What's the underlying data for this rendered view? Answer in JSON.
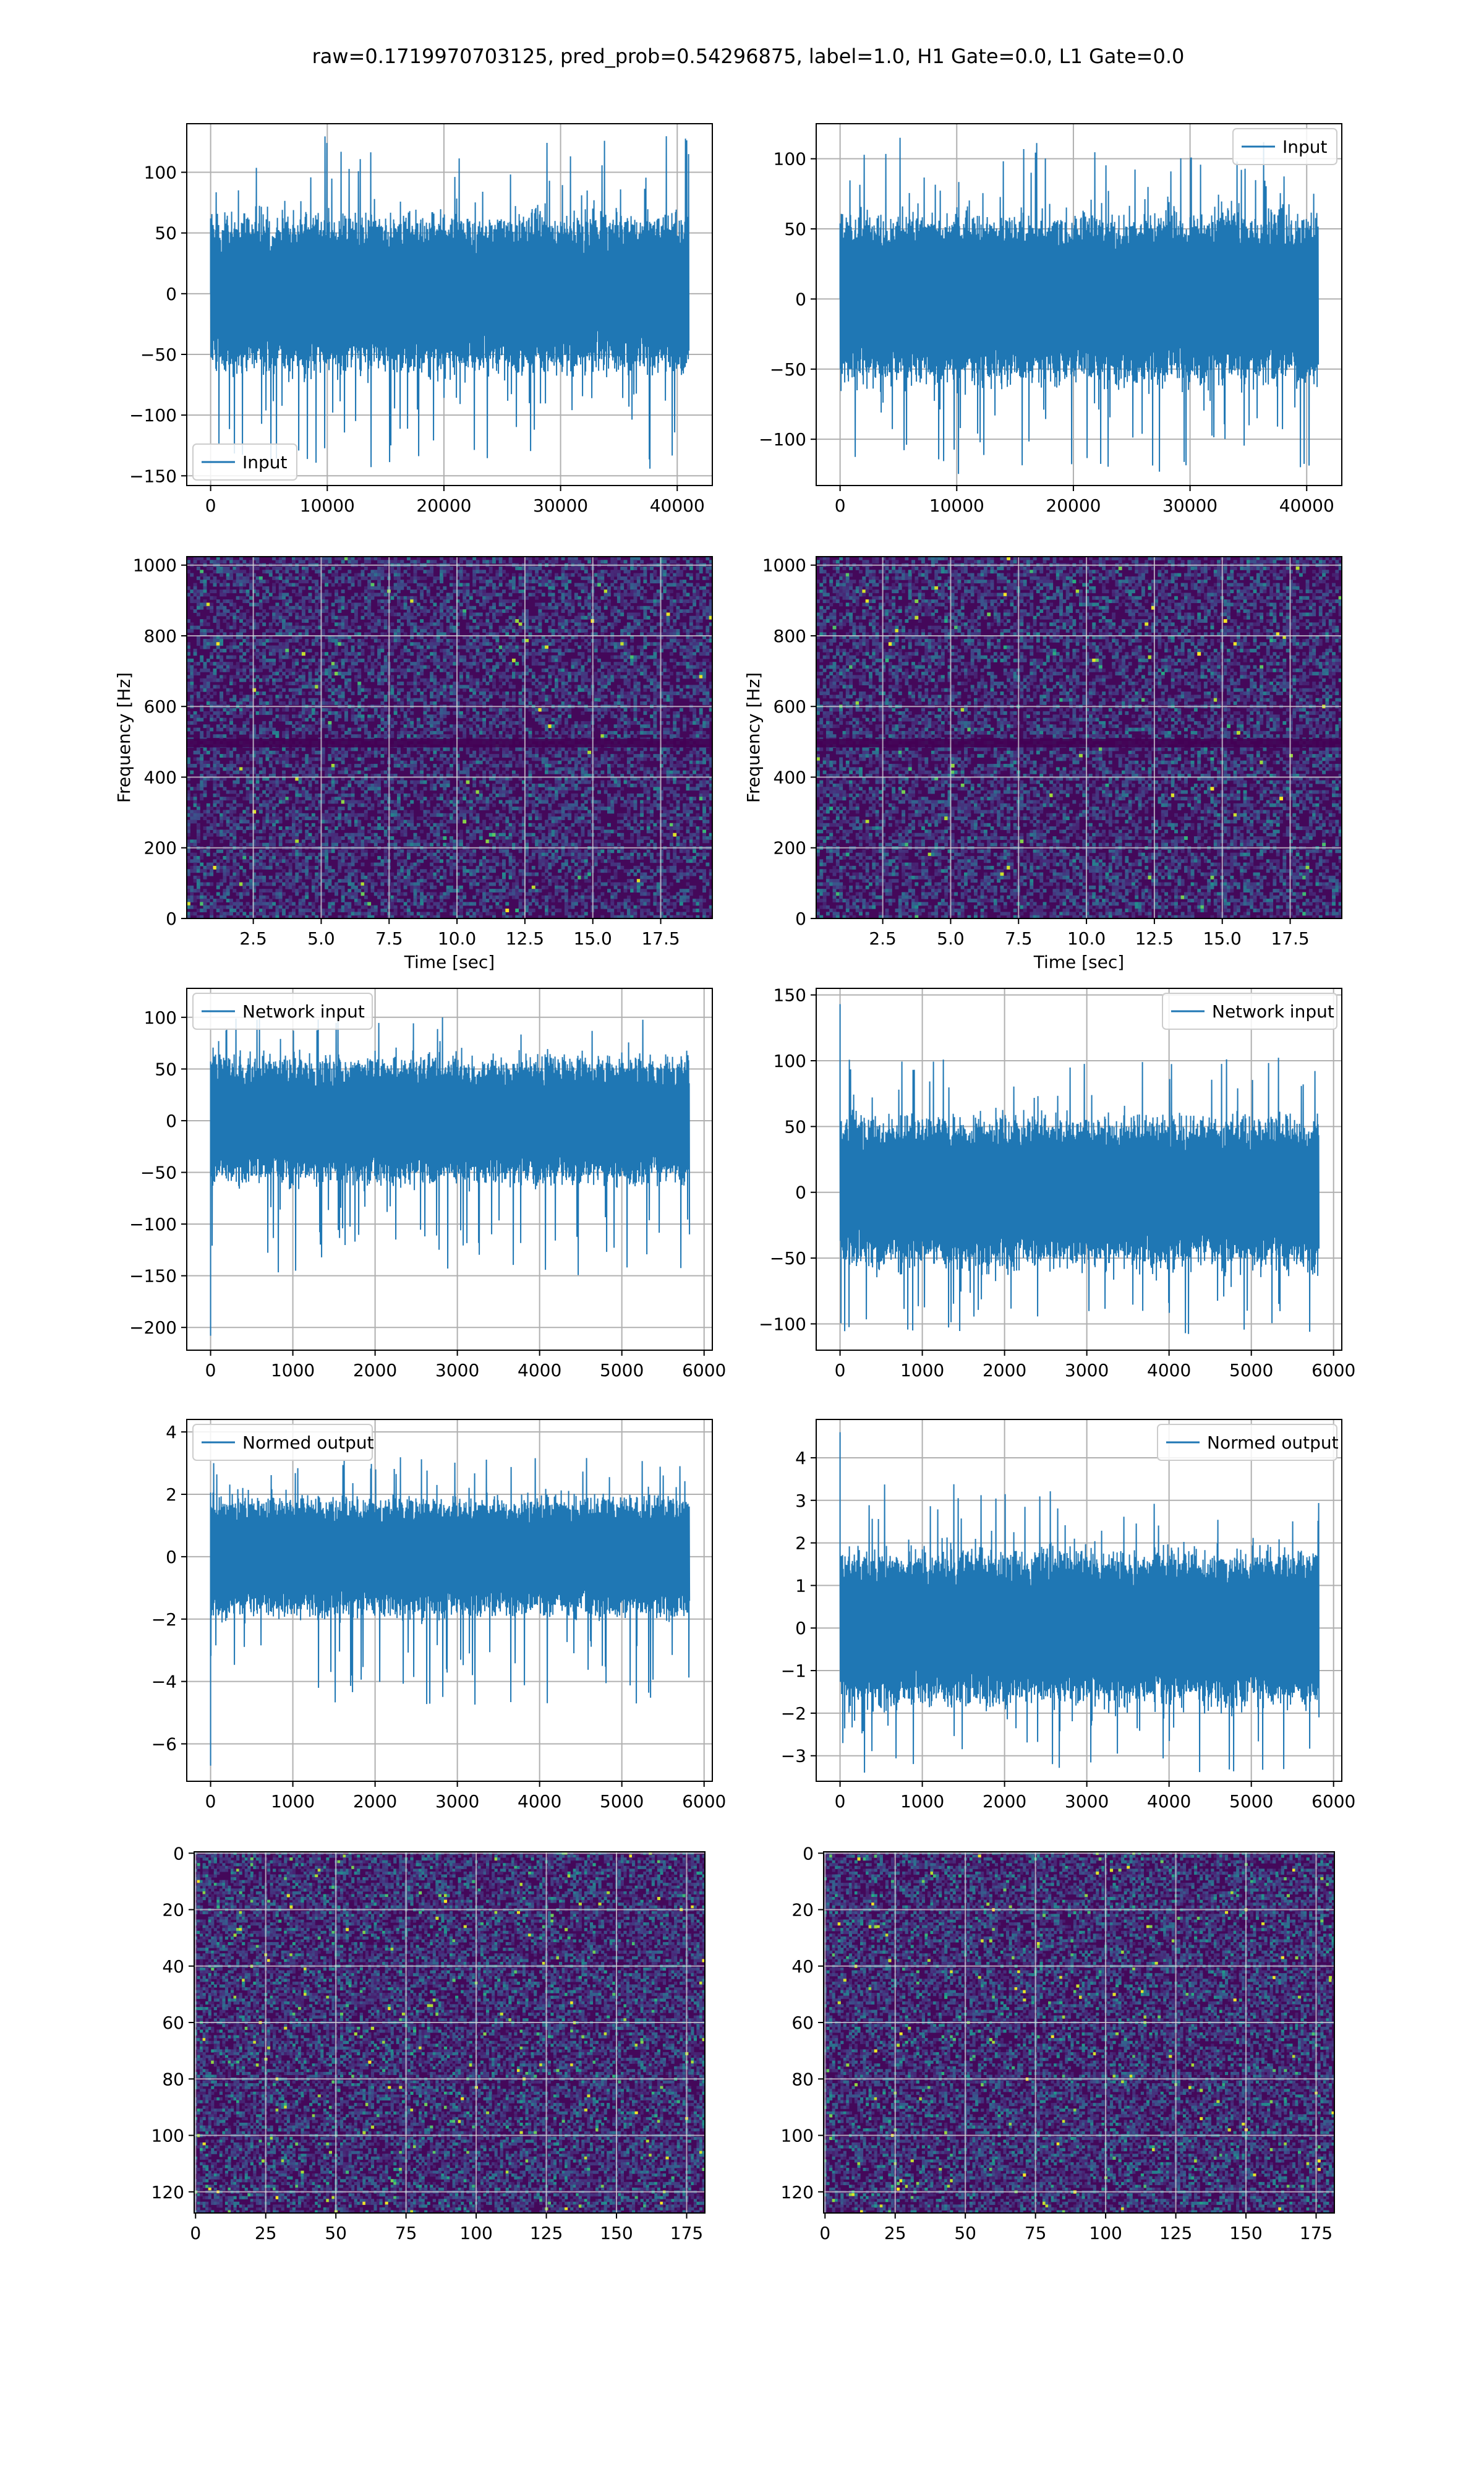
{
  "figure": {
    "title": "raw=0.1719970703125, pred_prob=0.54296875, label=1.0, H1 Gate=0.0, L1 Gate=0.0",
    "accent_color": "#1f77b4",
    "colormap": "viridis"
  },
  "chart_data": [
    {
      "id": "p1",
      "type": "line",
      "series": [
        {
          "name": "Input"
        }
      ],
      "xlim": [
        -2048,
        43008
      ],
      "ylim": [
        -158,
        140
      ],
      "xticks": [
        0,
        10000,
        20000,
        30000,
        40000
      ],
      "yticks": [
        -150,
        -100,
        -50,
        0,
        50,
        100
      ],
      "xticklabels": [
        "0",
        "10000",
        "20000",
        "30000",
        "40000"
      ],
      "yticklabels": [
        "−150",
        "−100",
        "−50",
        "0",
        "50",
        "100"
      ],
      "grid": true,
      "legend": "lower-left",
      "signal": {
        "x_start": 0,
        "x_end": 40960,
        "band": 32,
        "peak_max": 131,
        "peak_min": -145
      }
    },
    {
      "id": "p2",
      "type": "line",
      "series": [
        {
          "name": "Input"
        }
      ],
      "xlim": [
        -2048,
        43008
      ],
      "ylim": [
        -133,
        125
      ],
      "xticks": [
        0,
        10000,
        20000,
        30000,
        40000
      ],
      "yticks": [
        -100,
        -50,
        0,
        50,
        100
      ],
      "xticklabels": [
        "0",
        "10000",
        "20000",
        "30000",
        "40000"
      ],
      "yticklabels": [
        "−100",
        "−50",
        "0",
        "50",
        "100"
      ],
      "grid": true,
      "legend": "upper-right",
      "signal": {
        "x_start": 0,
        "x_end": 40960,
        "band": 30,
        "peak_max": 118,
        "peak_min": -125
      }
    },
    {
      "id": "p3",
      "type": "heatmap",
      "xlabel": "Time [sec]",
      "ylabel": "Frequency [Hz]",
      "xlim": [
        0.05,
        19.4
      ],
      "ylim": [
        0,
        1024
      ],
      "xticks": [
        2.5,
        5.0,
        7.5,
        10.0,
        12.5,
        15.0,
        17.5
      ],
      "yticks": [
        0,
        200,
        400,
        600,
        800,
        1000
      ],
      "xticklabels": [
        "2.5",
        "5.0",
        "7.5",
        "10.0",
        "12.5",
        "15.0",
        "17.5"
      ],
      "yticklabels": [
        "0",
        "200",
        "400",
        "600",
        "800",
        "1000"
      ],
      "grid": true,
      "dark_line_freq": 500
    },
    {
      "id": "p4",
      "type": "heatmap",
      "xlabel": "Time [sec]",
      "ylabel": "Frequency [Hz]",
      "xlim": [
        0.05,
        19.4
      ],
      "ylim": [
        0,
        1024
      ],
      "xticks": [
        2.5,
        5.0,
        7.5,
        10.0,
        12.5,
        15.0,
        17.5
      ],
      "yticks": [
        0,
        200,
        400,
        600,
        800,
        1000
      ],
      "xticklabels": [
        "2.5",
        "5.0",
        "7.5",
        "10.0",
        "12.5",
        "15.0",
        "17.5"
      ],
      "yticklabels": [
        "0",
        "200",
        "400",
        "600",
        "800",
        "1000"
      ],
      "grid": true,
      "dark_line_freq": 500
    },
    {
      "id": "p5",
      "type": "line",
      "series": [
        {
          "name": "Network input"
        }
      ],
      "xlim": [
        -290,
        6100
      ],
      "ylim": [
        -222,
        128
      ],
      "xticks": [
        0,
        1000,
        2000,
        3000,
        4000,
        5000,
        6000
      ],
      "yticks": [
        -200,
        -150,
        -100,
        -50,
        0,
        50,
        100
      ],
      "xticklabels": [
        "0",
        "1000",
        "2000",
        "3000",
        "4000",
        "5000",
        "6000"
      ],
      "yticklabels": [
        "−200",
        "−150",
        "−100",
        "−50",
        "0",
        "50",
        "100"
      ],
      "grid": true,
      "legend": "upper-left",
      "signal": {
        "x_start": 0,
        "x_end": 5820,
        "band": 30,
        "peak_max": 100,
        "peak_min": -150,
        "spike_at_start": -208
      }
    },
    {
      "id": "p6",
      "type": "line",
      "series": [
        {
          "name": "Network input"
        }
      ],
      "xlim": [
        -290,
        6100
      ],
      "ylim": [
        -120,
        155
      ],
      "xticks": [
        0,
        1000,
        2000,
        3000,
        4000,
        5000,
        6000
      ],
      "yticks": [
        -100,
        -50,
        0,
        50,
        100,
        150
      ],
      "xticklabels": [
        "0",
        "1000",
        "2000",
        "3000",
        "4000",
        "5000",
        "6000"
      ],
      "yticklabels": [
        "−100",
        "−50",
        "0",
        "50",
        "100",
        "150"
      ],
      "grid": true,
      "legend": "upper-right",
      "signal": {
        "x_start": 0,
        "x_end": 5820,
        "band": 28,
        "peak_max": 105,
        "peak_min": -108,
        "spike_at_start": 143
      }
    },
    {
      "id": "p7",
      "type": "line",
      "series": [
        {
          "name": "Normed output"
        }
      ],
      "xlim": [
        -290,
        6100
      ],
      "ylim": [
        -7.2,
        4.4
      ],
      "xticks": [
        0,
        1000,
        2000,
        3000,
        4000,
        5000,
        6000
      ],
      "yticks": [
        -6,
        -4,
        -2,
        0,
        2,
        4
      ],
      "xticklabels": [
        "0",
        "1000",
        "2000",
        "3000",
        "4000",
        "5000",
        "6000"
      ],
      "yticklabels": [
        "−6",
        "−4",
        "−2",
        "0",
        "2",
        "4"
      ],
      "grid": true,
      "legend": "upper-left",
      "signal": {
        "x_start": 0,
        "x_end": 5820,
        "band": 0.95,
        "peak_max": 3.2,
        "peak_min": -4.8,
        "spike_at_start": -6.7
      }
    },
    {
      "id": "p8",
      "type": "line",
      "series": [
        {
          "name": "Normed output"
        }
      ],
      "xlim": [
        -290,
        6100
      ],
      "ylim": [
        -3.6,
        4.9
      ],
      "xticks": [
        0,
        1000,
        2000,
        3000,
        4000,
        5000,
        6000
      ],
      "yticks": [
        -3,
        -2,
        -1,
        0,
        1,
        2,
        3,
        4
      ],
      "xticklabels": [
        "0",
        "1000",
        "2000",
        "3000",
        "4000",
        "5000",
        "6000"
      ],
      "yticklabels": [
        "−3",
        "−2",
        "−1",
        "0",
        "1",
        "2",
        "3",
        "4"
      ],
      "grid": true,
      "legend": "upper-right",
      "signal": {
        "x_start": 0,
        "x_end": 5820,
        "band": 0.9,
        "peak_max": 3.4,
        "peak_min": -3.4,
        "spike_at_start": 4.6
      }
    },
    {
      "id": "p9",
      "type": "heatmap",
      "xlim": [
        -0.5,
        181.5
      ],
      "ylim": [
        -0.5,
        127.5
      ],
      "xticks": [
        0,
        25,
        50,
        75,
        100,
        125,
        150,
        175
      ],
      "yticks": [
        0,
        20,
        40,
        60,
        80,
        100,
        120
      ],
      "xticklabels": [
        "0",
        "25",
        "50",
        "75",
        "100",
        "125",
        "150",
        "175"
      ],
      "yticklabels": [
        "0",
        "20",
        "40",
        "60",
        "80",
        "100",
        "120"
      ],
      "grid": true,
      "y_inverted": true,
      "grid_rows": 128,
      "grid_cols": 182
    },
    {
      "id": "p10",
      "type": "heatmap",
      "xlim": [
        -0.5,
        181.5
      ],
      "ylim": [
        -0.5,
        127.5
      ],
      "xticks": [
        0,
        25,
        50,
        75,
        100,
        125,
        150,
        175
      ],
      "yticks": [
        0,
        20,
        40,
        60,
        80,
        100,
        120
      ],
      "xticklabels": [
        "0",
        "25",
        "50",
        "75",
        "100",
        "125",
        "150",
        "175"
      ],
      "yticklabels": [
        "0",
        "20",
        "40",
        "60",
        "80",
        "100",
        "120"
      ],
      "grid": true,
      "y_inverted": true,
      "grid_rows": 128,
      "grid_cols": 182
    }
  ]
}
